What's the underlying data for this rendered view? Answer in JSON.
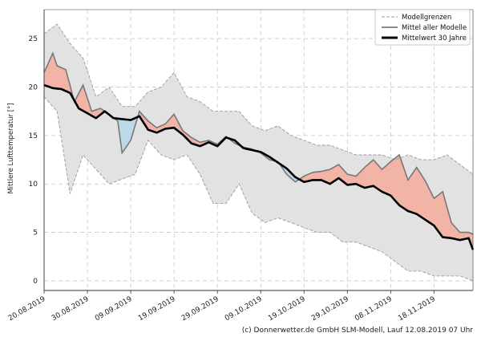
{
  "chart_data": {
    "type": "line",
    "ylabel": "Mittlere Lufttemperatur [°]",
    "xlim": [
      "2019-08-20",
      "2019-11-29"
    ],
    "ylim": [
      -1,
      28
    ],
    "grid": true,
    "legend_position": "top-right",
    "x_ticks": [
      "20.08.2019",
      "30.08.2019",
      "09.09.2019",
      "19.09.2019",
      "29.09.2019",
      "09.10.2019",
      "19.10.2019",
      "29.10.2019",
      "08.11.2019",
      "18.11.2019"
    ],
    "y_ticks": [
      0,
      5,
      10,
      15,
      20,
      25
    ],
    "legend": {
      "entries": [
        {
          "label": "Modellgrenzen",
          "style": "dashed"
        },
        {
          "label": "Mittel aller Modelle",
          "style": "solid"
        },
        {
          "label": "Mittelwert 30 Jahre",
          "style": "bold"
        }
      ]
    },
    "colors": {
      "band": "#e2e2e2",
      "band_edge": "#9a9a9a",
      "warm": "#f2b4a6",
      "cold": "#bcd9e8",
      "model_mean": "#777777",
      "climatology": "#000000"
    },
    "series": [
      {
        "name": "Modellgrenzen (max)",
        "anchors": [
          [
            0,
            25.5
          ],
          [
            3,
            26.5
          ],
          [
            6,
            24.5
          ],
          [
            9,
            23
          ],
          [
            12,
            19
          ],
          [
            15,
            20
          ],
          [
            18,
            18
          ],
          [
            21,
            18
          ],
          [
            24,
            19.5
          ],
          [
            27,
            20
          ],
          [
            30,
            21.5
          ],
          [
            33,
            19
          ],
          [
            36,
            18.5
          ],
          [
            39,
            17.5
          ],
          [
            42,
            17.5
          ],
          [
            45,
            17.5
          ],
          [
            48,
            16
          ],
          [
            51,
            15.5
          ],
          [
            54,
            16
          ],
          [
            57,
            15
          ],
          [
            60,
            14.5
          ],
          [
            63,
            14
          ],
          [
            66,
            14
          ],
          [
            69,
            13.5
          ],
          [
            72,
            13
          ],
          [
            75,
            13
          ],
          [
            78,
            13
          ],
          [
            81,
            12.5
          ],
          [
            84,
            13
          ],
          [
            87,
            12.5
          ],
          [
            90,
            12.5
          ],
          [
            93,
            13
          ],
          [
            96,
            12
          ],
          [
            99,
            11
          ]
        ]
      },
      {
        "name": "Modellgrenzen (min)",
        "anchors": [
          [
            0,
            19
          ],
          [
            3,
            17.5
          ],
          [
            6,
            9
          ],
          [
            9,
            13
          ],
          [
            12,
            11.5
          ],
          [
            15,
            10
          ],
          [
            18,
            10.5
          ],
          [
            21,
            11
          ],
          [
            24,
            14.5
          ],
          [
            27,
            13
          ],
          [
            30,
            12.5
          ],
          [
            33,
            13
          ],
          [
            36,
            11
          ],
          [
            39,
            8
          ],
          [
            42,
            8
          ],
          [
            45,
            10
          ],
          [
            48,
            7
          ],
          [
            51,
            6
          ],
          [
            54,
            6.5
          ],
          [
            57,
            6
          ],
          [
            60,
            5.5
          ],
          [
            63,
            5
          ],
          [
            66,
            5
          ],
          [
            69,
            4
          ],
          [
            72,
            4
          ],
          [
            75,
            3.5
          ],
          [
            78,
            3
          ],
          [
            81,
            2
          ],
          [
            84,
            1
          ],
          [
            87,
            1
          ],
          [
            90,
            0.5
          ],
          [
            93,
            0.5
          ],
          [
            96,
            0.5
          ],
          [
            99,
            0
          ]
        ]
      },
      {
        "name": "Mittel aller Modelle",
        "anchors": [
          [
            0,
            21.5
          ],
          [
            2,
            23.5
          ],
          [
            3,
            22.2
          ],
          [
            5,
            21.8
          ],
          [
            7,
            18.5
          ],
          [
            9,
            20.2
          ],
          [
            11,
            17.5
          ],
          [
            13,
            17.8
          ],
          [
            15,
            17.2
          ],
          [
            17,
            16.5
          ],
          [
            18,
            13.2
          ],
          [
            20,
            14.5
          ],
          [
            22,
            17.5
          ],
          [
            24,
            16.5
          ],
          [
            26,
            15.8
          ],
          [
            28,
            16.2
          ],
          [
            30,
            17.2
          ],
          [
            32,
            15.5
          ],
          [
            34,
            14.8
          ],
          [
            36,
            14.3
          ],
          [
            38,
            14.5
          ],
          [
            40,
            14.1
          ],
          [
            42,
            14.9
          ],
          [
            44,
            14.2
          ],
          [
            46,
            13.8
          ],
          [
            48,
            13.6
          ],
          [
            50,
            13.2
          ],
          [
            52,
            12.5
          ],
          [
            54,
            12.3
          ],
          [
            56,
            11.0
          ],
          [
            58,
            10.2
          ],
          [
            60,
            10.8
          ],
          [
            62,
            11.2
          ],
          [
            64,
            11.3
          ],
          [
            66,
            11.5
          ],
          [
            68,
            12.0
          ],
          [
            70,
            11.0
          ],
          [
            72,
            10.8
          ],
          [
            74,
            11.7
          ],
          [
            76,
            12.5
          ],
          [
            78,
            11.5
          ],
          [
            80,
            12.3
          ],
          [
            82,
            13.0
          ],
          [
            84,
            10.4
          ],
          [
            86,
            11.7
          ],
          [
            88,
            10.3
          ],
          [
            90,
            8.5
          ],
          [
            92,
            9.2
          ],
          [
            94,
            6.0
          ],
          [
            96,
            5.0
          ],
          [
            98,
            5.0
          ],
          [
            99,
            4.8
          ]
        ]
      },
      {
        "name": "Mittelwert 30 Jahre",
        "anchors": [
          [
            0,
            20.2
          ],
          [
            2,
            19.9
          ],
          [
            4,
            19.8
          ],
          [
            6,
            19.4
          ],
          [
            8,
            17.8
          ],
          [
            10,
            17.3
          ],
          [
            12,
            16.8
          ],
          [
            14,
            17.5
          ],
          [
            16,
            16.8
          ],
          [
            18,
            16.7
          ],
          [
            20,
            16.6
          ],
          [
            22,
            17.0
          ],
          [
            24,
            15.6
          ],
          [
            26,
            15.3
          ],
          [
            28,
            15.7
          ],
          [
            30,
            15.8
          ],
          [
            32,
            15.1
          ],
          [
            34,
            14.2
          ],
          [
            36,
            13.9
          ],
          [
            38,
            14.3
          ],
          [
            40,
            13.9
          ],
          [
            42,
            14.8
          ],
          [
            44,
            14.5
          ],
          [
            46,
            13.7
          ],
          [
            48,
            13.5
          ],
          [
            50,
            13.3
          ],
          [
            52,
            12.8
          ],
          [
            54,
            12.2
          ],
          [
            56,
            11.6
          ],
          [
            58,
            10.7
          ],
          [
            60,
            10.2
          ],
          [
            62,
            10.4
          ],
          [
            64,
            10.4
          ],
          [
            66,
            10.0
          ],
          [
            68,
            10.6
          ],
          [
            70,
            9.9
          ],
          [
            72,
            10.0
          ],
          [
            74,
            9.6
          ],
          [
            76,
            9.8
          ],
          [
            78,
            9.2
          ],
          [
            80,
            8.8
          ],
          [
            82,
            7.8
          ],
          [
            84,
            7.2
          ],
          [
            86,
            6.9
          ],
          [
            88,
            6.3
          ],
          [
            90,
            5.7
          ],
          [
            92,
            4.5
          ],
          [
            94,
            4.4
          ],
          [
            96,
            4.2
          ],
          [
            98,
            4.4
          ],
          [
            99,
            3.2
          ]
        ]
      }
    ]
  },
  "credit": "(c) Donnerwetter.de GmbH SLM-Modell, Lauf 12.08.2019 07 Uhr"
}
